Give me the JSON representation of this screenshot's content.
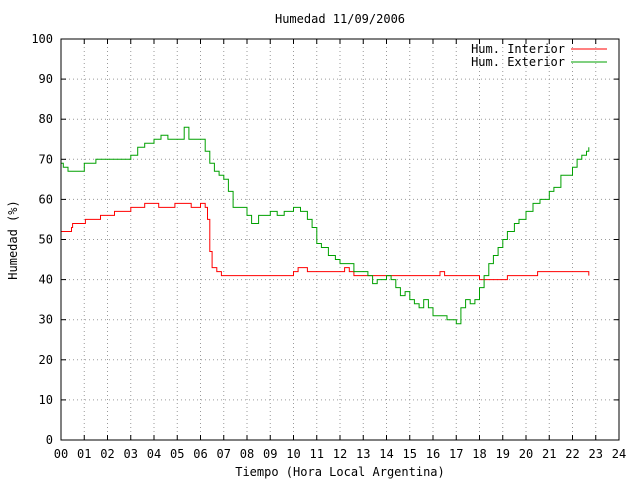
{
  "chart_data": {
    "type": "line",
    "title": "Humedad 11/09/2006",
    "xlabel": "Tiempo (Hora Local Argentina)",
    "ylabel": "Humedad (%)",
    "xlim": [
      0,
      24
    ],
    "ylim": [
      0,
      100
    ],
    "grid": true,
    "legend_position": "top-right",
    "x_tick_labels": [
      "00",
      "01",
      "02",
      "03",
      "04",
      "05",
      "06",
      "07",
      "08",
      "09",
      "10",
      "11",
      "12",
      "13",
      "14",
      "15",
      "16",
      "17",
      "18",
      "19",
      "20",
      "21",
      "22",
      "23",
      "24"
    ],
    "y_tick_labels": [
      "0",
      "10",
      "20",
      "30",
      "40",
      "50",
      "60",
      "70",
      "80",
      "90",
      "100"
    ],
    "series": [
      {
        "name": "Hum. Interior",
        "color": "#ff0000",
        "points": [
          [
            0.0,
            52
          ],
          [
            0.25,
            52
          ],
          [
            0.45,
            53
          ],
          [
            0.5,
            54
          ],
          [
            1.0,
            54
          ],
          [
            1.05,
            55
          ],
          [
            1.6,
            55
          ],
          [
            1.7,
            56
          ],
          [
            2.2,
            56
          ],
          [
            2.3,
            57
          ],
          [
            2.8,
            57
          ],
          [
            3.0,
            58
          ],
          [
            3.4,
            58
          ],
          [
            3.6,
            59
          ],
          [
            4.0,
            59
          ],
          [
            4.2,
            58
          ],
          [
            4.6,
            58
          ],
          [
            4.9,
            59
          ],
          [
            5.4,
            59
          ],
          [
            5.6,
            58
          ],
          [
            5.8,
            58
          ],
          [
            6.0,
            59
          ],
          [
            6.2,
            58
          ],
          [
            6.3,
            55
          ],
          [
            6.4,
            47
          ],
          [
            6.5,
            43
          ],
          [
            6.7,
            42
          ],
          [
            6.9,
            41
          ],
          [
            7.5,
            41
          ],
          [
            8.5,
            41
          ],
          [
            9.5,
            41
          ],
          [
            10.0,
            42
          ],
          [
            10.2,
            43
          ],
          [
            10.6,
            42
          ],
          [
            11.0,
            42
          ],
          [
            11.5,
            42
          ],
          [
            12.0,
            42
          ],
          [
            12.2,
            43
          ],
          [
            12.4,
            42
          ],
          [
            12.6,
            41
          ],
          [
            13.0,
            41
          ],
          [
            14.0,
            41
          ],
          [
            14.5,
            41
          ],
          [
            15.0,
            41
          ],
          [
            15.5,
            41
          ],
          [
            16.0,
            41
          ],
          [
            16.3,
            42
          ],
          [
            16.5,
            41
          ],
          [
            17.0,
            41
          ],
          [
            17.5,
            41
          ],
          [
            18.0,
            40
          ],
          [
            18.5,
            40
          ],
          [
            19.0,
            40
          ],
          [
            19.2,
            41
          ],
          [
            19.8,
            41
          ],
          [
            20.3,
            41
          ],
          [
            20.5,
            42
          ],
          [
            21.0,
            42
          ],
          [
            21.5,
            42
          ],
          [
            22.0,
            42
          ],
          [
            22.5,
            42
          ],
          [
            22.7,
            41
          ]
        ]
      },
      {
        "name": "Hum. Exterior",
        "color": "#00a000",
        "points": [
          [
            0.0,
            69
          ],
          [
            0.1,
            68
          ],
          [
            0.3,
            67
          ],
          [
            0.6,
            67
          ],
          [
            1.0,
            69
          ],
          [
            1.5,
            70
          ],
          [
            2.0,
            70
          ],
          [
            2.5,
            70
          ],
          [
            3.0,
            71
          ],
          [
            3.3,
            73
          ],
          [
            3.6,
            74
          ],
          [
            4.0,
            75
          ],
          [
            4.3,
            76
          ],
          [
            4.6,
            75
          ],
          [
            5.0,
            75
          ],
          [
            5.3,
            78
          ],
          [
            5.5,
            75
          ],
          [
            6.0,
            75
          ],
          [
            6.2,
            72
          ],
          [
            6.4,
            69
          ],
          [
            6.6,
            67
          ],
          [
            6.8,
            66
          ],
          [
            7.0,
            65
          ],
          [
            7.2,
            62
          ],
          [
            7.4,
            58
          ],
          [
            7.8,
            58
          ],
          [
            8.0,
            56
          ],
          [
            8.2,
            54
          ],
          [
            8.5,
            56
          ],
          [
            9.0,
            57
          ],
          [
            9.3,
            56
          ],
          [
            9.6,
            57
          ],
          [
            10.0,
            58
          ],
          [
            10.3,
            57
          ],
          [
            10.6,
            55
          ],
          [
            10.8,
            53
          ],
          [
            11.0,
            49
          ],
          [
            11.2,
            48
          ],
          [
            11.5,
            46
          ],
          [
            11.8,
            45
          ],
          [
            12.0,
            44
          ],
          [
            12.3,
            44
          ],
          [
            12.6,
            42
          ],
          [
            13.0,
            42
          ],
          [
            13.2,
            41
          ],
          [
            13.4,
            39
          ],
          [
            13.6,
            40
          ],
          [
            14.0,
            41
          ],
          [
            14.2,
            40
          ],
          [
            14.4,
            38
          ],
          [
            14.6,
            36
          ],
          [
            14.8,
            37
          ],
          [
            15.0,
            35
          ],
          [
            15.2,
            34
          ],
          [
            15.4,
            33
          ],
          [
            15.6,
            35
          ],
          [
            15.8,
            33
          ],
          [
            16.0,
            31
          ],
          [
            16.2,
            31
          ],
          [
            16.4,
            31
          ],
          [
            16.6,
            30
          ],
          [
            16.8,
            30
          ],
          [
            17.0,
            29
          ],
          [
            17.2,
            33
          ],
          [
            17.4,
            35
          ],
          [
            17.6,
            34
          ],
          [
            17.8,
            35
          ],
          [
            18.0,
            38
          ],
          [
            18.2,
            41
          ],
          [
            18.4,
            44
          ],
          [
            18.6,
            46
          ],
          [
            18.8,
            48
          ],
          [
            19.0,
            50
          ],
          [
            19.2,
            52
          ],
          [
            19.5,
            54
          ],
          [
            19.7,
            55
          ],
          [
            20.0,
            57
          ],
          [
            20.3,
            59
          ],
          [
            20.6,
            60
          ],
          [
            21.0,
            62
          ],
          [
            21.2,
            63
          ],
          [
            21.5,
            66
          ],
          [
            21.8,
            66
          ],
          [
            22.0,
            68
          ],
          [
            22.2,
            70
          ],
          [
            22.4,
            71
          ],
          [
            22.6,
            72
          ],
          [
            22.7,
            73
          ]
        ]
      }
    ]
  }
}
